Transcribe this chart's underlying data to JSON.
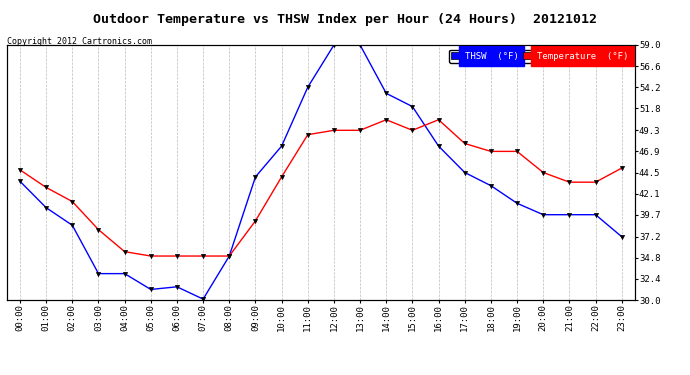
{
  "title": "Outdoor Temperature vs THSW Index per Hour (24 Hours)  20121012",
  "copyright": "Copyright 2012 Cartronics.com",
  "ylabel_right_ticks": [
    30.0,
    32.4,
    34.8,
    37.2,
    39.7,
    42.1,
    44.5,
    46.9,
    49.3,
    51.8,
    54.2,
    56.6,
    59.0
  ],
  "ylim": [
    30.0,
    59.0
  ],
  "hours": [
    "00:00",
    "01:00",
    "02:00",
    "03:00",
    "04:00",
    "05:00",
    "06:00",
    "07:00",
    "08:00",
    "09:00",
    "10:00",
    "11:00",
    "12:00",
    "13:00",
    "14:00",
    "15:00",
    "16:00",
    "17:00",
    "18:00",
    "19:00",
    "20:00",
    "21:00",
    "22:00",
    "23:00"
  ],
  "thsw": [
    43.5,
    40.5,
    38.5,
    33.0,
    33.0,
    31.2,
    31.5,
    30.1,
    35.0,
    44.0,
    47.5,
    54.2,
    59.0,
    59.0,
    53.5,
    52.0,
    47.5,
    44.5,
    43.0,
    41.0,
    39.7,
    39.7,
    39.7,
    37.2
  ],
  "temperature": [
    44.8,
    42.8,
    41.2,
    38.0,
    35.5,
    35.0,
    35.0,
    35.0,
    35.0,
    39.0,
    44.0,
    48.8,
    49.3,
    49.3,
    50.5,
    49.3,
    50.5,
    47.8,
    46.9,
    46.9,
    44.5,
    43.4,
    43.4,
    45.0
  ],
  "thsw_color": "#0000FF",
  "temperature_color": "#FF0000",
  "marker_color": "#000000",
  "bg_color": "#FFFFFF",
  "grid_color": "#BBBBBB",
  "title_fontsize": 9.5,
  "copyright_fontsize": 6.0,
  "tick_fontsize": 6.5,
  "legend_thsw_label": "THSW  (°F)",
  "legend_temp_label": "Temperature  (°F)"
}
